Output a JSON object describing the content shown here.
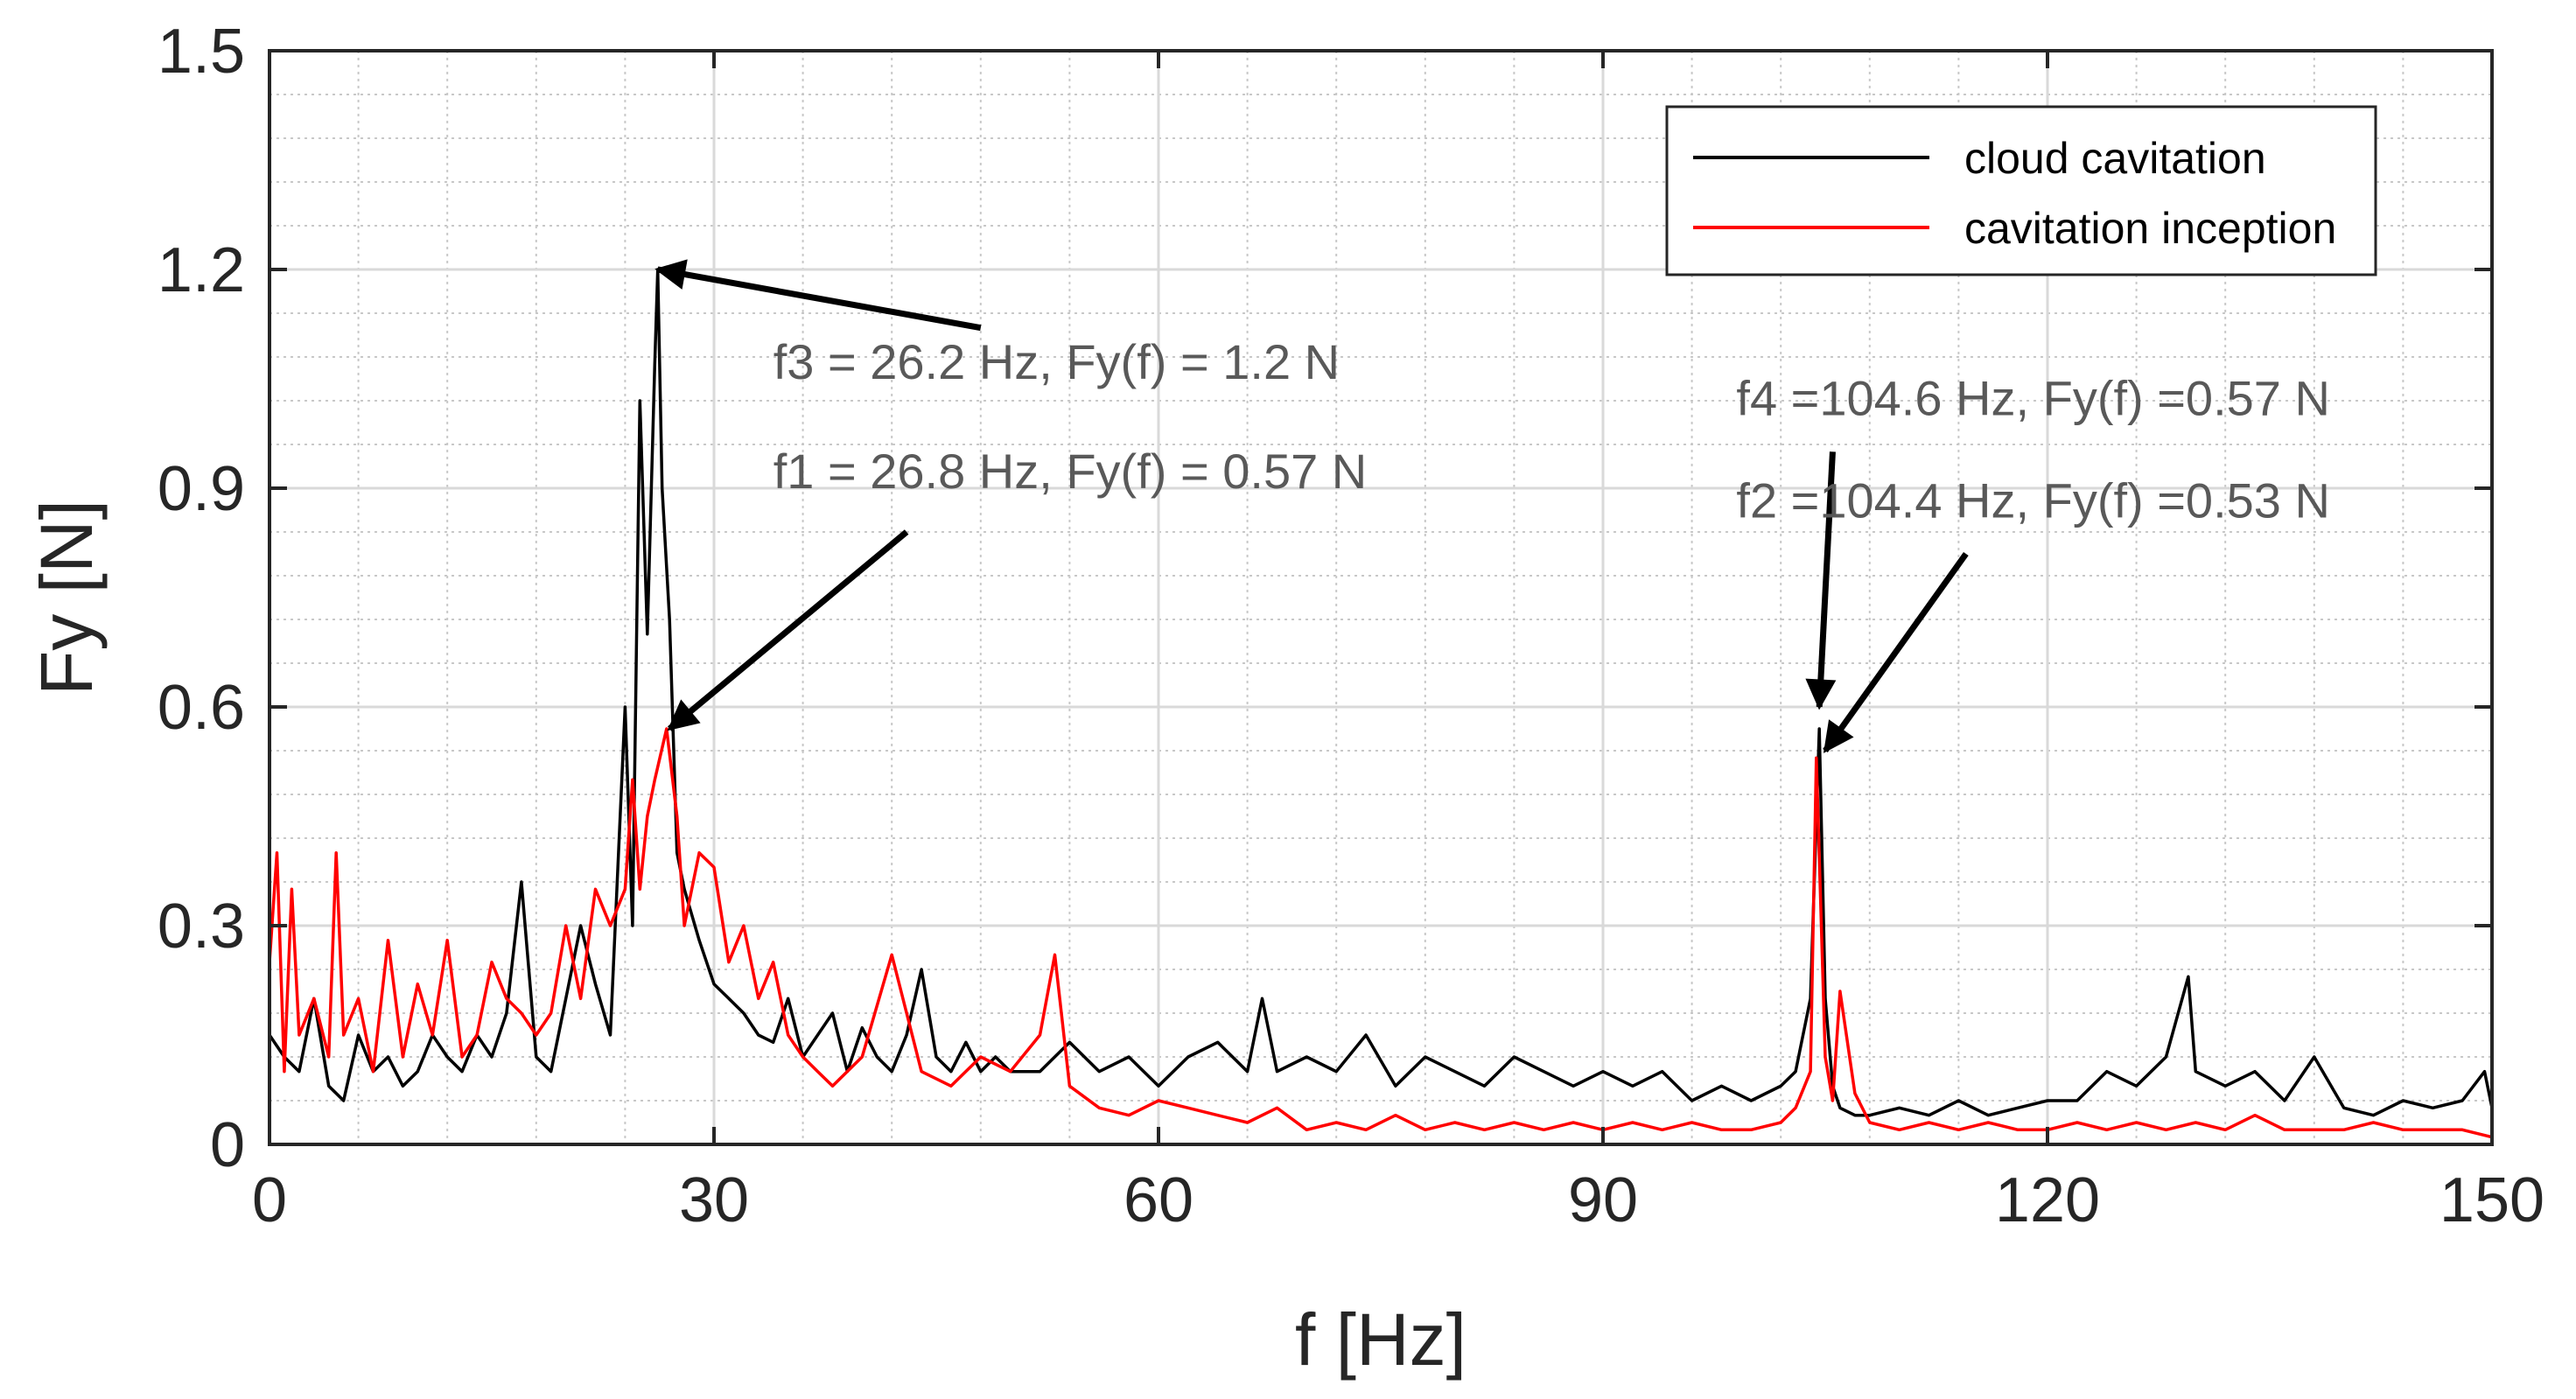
{
  "chart_data": {
    "type": "line",
    "title": "",
    "xlabel": "f [Hz]",
    "ylabel": "Fy [N]",
    "xlim": [
      0,
      150
    ],
    "ylim": [
      0,
      1.5
    ],
    "xticks": [
      0,
      30,
      60,
      90,
      120,
      150
    ],
    "xtick_labels": [
      "0",
      "30",
      "60",
      "90",
      "120",
      "150"
    ],
    "yticks": [
      0,
      0.3,
      0.6,
      0.9,
      1.2,
      1.5
    ],
    "ytick_labels": [
      "0",
      "0.3",
      "0.6",
      "0.9",
      "1.2",
      "1.5"
    ],
    "grid": true,
    "minor_grid": true,
    "legend_position": "top-right",
    "series": [
      {
        "name": "cloud cavitation",
        "color": "#000000",
        "x": [
          0,
          1,
          2,
          3,
          4,
          5,
          6,
          7,
          8,
          9,
          10,
          11,
          12,
          13,
          14,
          15,
          16,
          17,
          18,
          19,
          20,
          21,
          22,
          23,
          24,
          24.5,
          25,
          25.5,
          26,
          26.2,
          26.5,
          27,
          27.5,
          28,
          29,
          30,
          31,
          32,
          33,
          34,
          35,
          36,
          37,
          38,
          39,
          40,
          41,
          42,
          43,
          44,
          45,
          46,
          47,
          48,
          49,
          50,
          52,
          54,
          56,
          58,
          60,
          62,
          64,
          66,
          67,
          68,
          70,
          72,
          74,
          76,
          78,
          80,
          82,
          84,
          86,
          88,
          90,
          92,
          94,
          96,
          98,
          100,
          102,
          103,
          104,
          104.6,
          105,
          105.5,
          106,
          107,
          108,
          110,
          112,
          114,
          116,
          118,
          120,
          122,
          124,
          126,
          128,
          129.5,
          130,
          132,
          134,
          136,
          138,
          140,
          142,
          144,
          146,
          148,
          149.5,
          150
        ],
        "values": [
          0.15,
          0.12,
          0.1,
          0.2,
          0.08,
          0.06,
          0.15,
          0.1,
          0.12,
          0.08,
          0.1,
          0.15,
          0.12,
          0.1,
          0.15,
          0.12,
          0.18,
          0.36,
          0.12,
          0.1,
          0.2,
          0.3,
          0.22,
          0.15,
          0.6,
          0.3,
          1.02,
          0.7,
          1.07,
          1.2,
          0.9,
          0.72,
          0.4,
          0.35,
          0.28,
          0.22,
          0.2,
          0.18,
          0.15,
          0.14,
          0.2,
          0.12,
          0.15,
          0.18,
          0.1,
          0.16,
          0.12,
          0.1,
          0.15,
          0.24,
          0.12,
          0.1,
          0.14,
          0.1,
          0.12,
          0.1,
          0.1,
          0.14,
          0.1,
          0.12,
          0.08,
          0.12,
          0.14,
          0.1,
          0.2,
          0.1,
          0.12,
          0.1,
          0.15,
          0.08,
          0.12,
          0.1,
          0.08,
          0.12,
          0.1,
          0.08,
          0.1,
          0.08,
          0.1,
          0.06,
          0.08,
          0.06,
          0.08,
          0.1,
          0.2,
          0.57,
          0.2,
          0.08,
          0.05,
          0.04,
          0.04,
          0.05,
          0.04,
          0.06,
          0.04,
          0.05,
          0.06,
          0.06,
          0.1,
          0.08,
          0.12,
          0.23,
          0.1,
          0.08,
          0.1,
          0.06,
          0.12,
          0.05,
          0.04,
          0.06,
          0.05,
          0.06,
          0.1,
          0.05
        ]
      },
      {
        "name": "cavitation inception",
        "color": "#ff0000",
        "x": [
          0,
          0.5,
          1,
          1.5,
          2,
          3,
          4,
          4.5,
          5,
          6,
          7,
          8,
          9,
          10,
          11,
          12,
          13,
          14,
          15,
          16,
          17,
          18,
          19,
          20,
          21,
          22,
          23,
          24,
          24.5,
          25,
          25.5,
          26,
          26.8,
          27.5,
          28,
          29,
          30,
          31,
          32,
          33,
          34,
          35,
          36,
          37,
          38,
          40,
          42,
          44,
          46,
          48,
          50,
          52,
          53,
          54,
          56,
          58,
          60,
          62,
          64,
          66,
          68,
          70,
          72,
          74,
          76,
          78,
          80,
          82,
          84,
          86,
          88,
          90,
          92,
          94,
          96,
          98,
          100,
          102,
          103,
          104,
          104.4,
          105,
          105.5,
          106,
          107,
          108,
          110,
          112,
          114,
          116,
          118,
          120,
          122,
          124,
          126,
          128,
          130,
          132,
          134,
          136,
          138,
          140,
          142,
          144,
          146,
          148,
          150
        ],
        "values": [
          0.25,
          0.4,
          0.1,
          0.35,
          0.15,
          0.2,
          0.12,
          0.4,
          0.15,
          0.2,
          0.1,
          0.28,
          0.12,
          0.22,
          0.15,
          0.28,
          0.12,
          0.15,
          0.25,
          0.2,
          0.18,
          0.15,
          0.18,
          0.3,
          0.2,
          0.35,
          0.3,
          0.35,
          0.5,
          0.35,
          0.45,
          0.5,
          0.57,
          0.45,
          0.3,
          0.4,
          0.38,
          0.25,
          0.3,
          0.2,
          0.25,
          0.15,
          0.12,
          0.1,
          0.08,
          0.12,
          0.26,
          0.1,
          0.08,
          0.12,
          0.1,
          0.15,
          0.26,
          0.08,
          0.05,
          0.04,
          0.06,
          0.05,
          0.04,
          0.03,
          0.05,
          0.02,
          0.03,
          0.02,
          0.04,
          0.02,
          0.03,
          0.02,
          0.03,
          0.02,
          0.03,
          0.02,
          0.03,
          0.02,
          0.03,
          0.02,
          0.02,
          0.03,
          0.05,
          0.1,
          0.53,
          0.12,
          0.06,
          0.21,
          0.07,
          0.03,
          0.02,
          0.03,
          0.02,
          0.03,
          0.02,
          0.02,
          0.03,
          0.02,
          0.03,
          0.02,
          0.03,
          0.02,
          0.04,
          0.02,
          0.02,
          0.02,
          0.03,
          0.02,
          0.02,
          0.02,
          0.01
        ]
      }
    ],
    "annotations": [
      {
        "text": "f3 = 26.2 Hz, Fy(f) = 1.2 N",
        "x": 26.2,
        "y": 1.2,
        "label_x": 34,
        "label_y": 1.05,
        "tail_x": 48,
        "tail_y": 1.12
      },
      {
        "text": "f1 = 26.8 Hz, Fy(f) = 0.57 N",
        "x": 27,
        "y": 0.57,
        "label_x": 34,
        "label_y": 0.9,
        "tail_x": 43,
        "tail_y": 0.84
      },
      {
        "text": "f4 =104.6 Hz, Fy(f) =0.57 N",
        "x": 104.6,
        "y": 0.6,
        "label_x": 99,
        "label_y": 1.0,
        "tail_x": 105.5,
        "tail_y": 0.95
      },
      {
        "text": "f2 =104.4 Hz, Fy(f) =0.53 N",
        "x": 105,
        "y": 0.54,
        "label_x": 99,
        "label_y": 0.86,
        "tail_x": 114.5,
        "tail_y": 0.81
      }
    ]
  }
}
